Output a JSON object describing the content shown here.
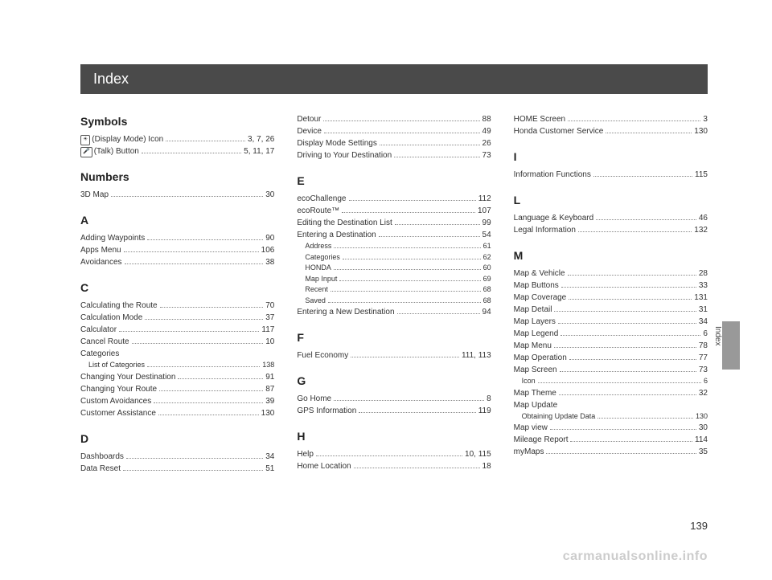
{
  "title": "Index",
  "pageNumber": "139",
  "sideLabel": "Index",
  "watermark": "carmanualsonline.info",
  "columns": [
    {
      "sections": [
        {
          "head": "Symbols",
          "entries": [
            {
              "label": "(Display Mode) Icon",
              "pages": "3, 7, 26",
              "iconGlyph": "☀"
            },
            {
              "label": "(Talk) Button",
              "pages": "5, 11, 17",
              "iconGlyph": "🎤"
            }
          ]
        },
        {
          "head": "Numbers",
          "entries": [
            {
              "label": "3D Map",
              "pages": "30"
            }
          ]
        },
        {
          "head": "A",
          "entries": [
            {
              "label": "Adding Waypoints",
              "pages": "90"
            },
            {
              "label": "Apps Menu",
              "pages": "106"
            },
            {
              "label": "Avoidances",
              "pages": "38"
            }
          ]
        },
        {
          "head": "C",
          "entries": [
            {
              "label": "Calculating the Route",
              "pages": "70"
            },
            {
              "label": "Calculation Mode",
              "pages": "37"
            },
            {
              "label": "Calculator",
              "pages": "117"
            },
            {
              "label": "Cancel Route",
              "pages": "10"
            },
            {
              "label": "Categories",
              "pages": "",
              "nodots": true
            },
            {
              "label": "List of Categories",
              "pages": "138",
              "sub": true
            },
            {
              "label": "Changing Your Destination",
              "pages": "91"
            },
            {
              "label": "Changing Your Route",
              "pages": "87"
            },
            {
              "label": "Custom Avoidances",
              "pages": "39"
            },
            {
              "label": "Customer Assistance",
              "pages": "130"
            }
          ]
        },
        {
          "head": "D",
          "entries": [
            {
              "label": "Dashboards",
              "pages": "34"
            },
            {
              "label": "Data Reset",
              "pages": "51"
            }
          ]
        }
      ]
    },
    {
      "sections": [
        {
          "head": "",
          "entries": [
            {
              "label": "Detour",
              "pages": "88"
            },
            {
              "label": "Device",
              "pages": "49"
            },
            {
              "label": "Display Mode Settings",
              "pages": "26"
            },
            {
              "label": "Driving to Your Destination",
              "pages": "73"
            }
          ]
        },
        {
          "head": "E",
          "entries": [
            {
              "label": "ecoChallenge",
              "pages": "112"
            },
            {
              "label": "ecoRoute™",
              "pages": "107"
            },
            {
              "label": "Editing the Destination List",
              "pages": "99"
            },
            {
              "label": "Entering a Destination",
              "pages": "54"
            },
            {
              "label": "Address",
              "pages": "61",
              "sub": true
            },
            {
              "label": "Categories",
              "pages": "62",
              "sub": true
            },
            {
              "label": "HONDA",
              "pages": "60",
              "sub": true
            },
            {
              "label": "Map Input",
              "pages": "69",
              "sub": true
            },
            {
              "label": "Recent",
              "pages": "68",
              "sub": true
            },
            {
              "label": "Saved",
              "pages": "68",
              "sub": true
            },
            {
              "label": "Entering a New Destination",
              "pages": "94"
            }
          ]
        },
        {
          "head": "F",
          "entries": [
            {
              "label": "Fuel Economy",
              "pages": "111, 113"
            }
          ]
        },
        {
          "head": "G",
          "entries": [
            {
              "label": "Go Home",
              "pages": "8"
            },
            {
              "label": "GPS Information",
              "pages": "119"
            }
          ]
        },
        {
          "head": "H",
          "entries": [
            {
              "label": "Help",
              "pages": "10, 115"
            },
            {
              "label": "Home Location",
              "pages": "18"
            }
          ]
        }
      ]
    },
    {
      "sections": [
        {
          "head": "",
          "entries": [
            {
              "label": "HOME Screen",
              "pages": "3"
            },
            {
              "label": "Honda Customer Service",
              "pages": "130"
            }
          ]
        },
        {
          "head": "I",
          "entries": [
            {
              "label": "Information Functions",
              "pages": "115"
            }
          ]
        },
        {
          "head": "L",
          "entries": [
            {
              "label": "Language & Keyboard",
              "pages": "46"
            },
            {
              "label": "Legal Information",
              "pages": "132"
            }
          ]
        },
        {
          "head": "M",
          "entries": [
            {
              "label": "Map & Vehicle",
              "pages": "28"
            },
            {
              "label": "Map Buttons",
              "pages": "33"
            },
            {
              "label": "Map Coverage",
              "pages": "131"
            },
            {
              "label": "Map Detail",
              "pages": "31"
            },
            {
              "label": "Map Layers",
              "pages": "34"
            },
            {
              "label": "Map Legend",
              "pages": "6"
            },
            {
              "label": "Map Menu",
              "pages": "78"
            },
            {
              "label": "Map Operation",
              "pages": "77"
            },
            {
              "label": "Map Screen",
              "pages": "73"
            },
            {
              "label": "Icon",
              "pages": "6",
              "sub": true
            },
            {
              "label": "Map Theme",
              "pages": "32"
            },
            {
              "label": "Map Update",
              "pages": "",
              "nodots": true
            },
            {
              "label": "Obtaining Update Data",
              "pages": "130",
              "sub": true
            },
            {
              "label": "Map view",
              "pages": "30"
            },
            {
              "label": "Mileage Report",
              "pages": "114"
            },
            {
              "label": "myMaps",
              "pages": "35"
            }
          ]
        }
      ]
    }
  ]
}
